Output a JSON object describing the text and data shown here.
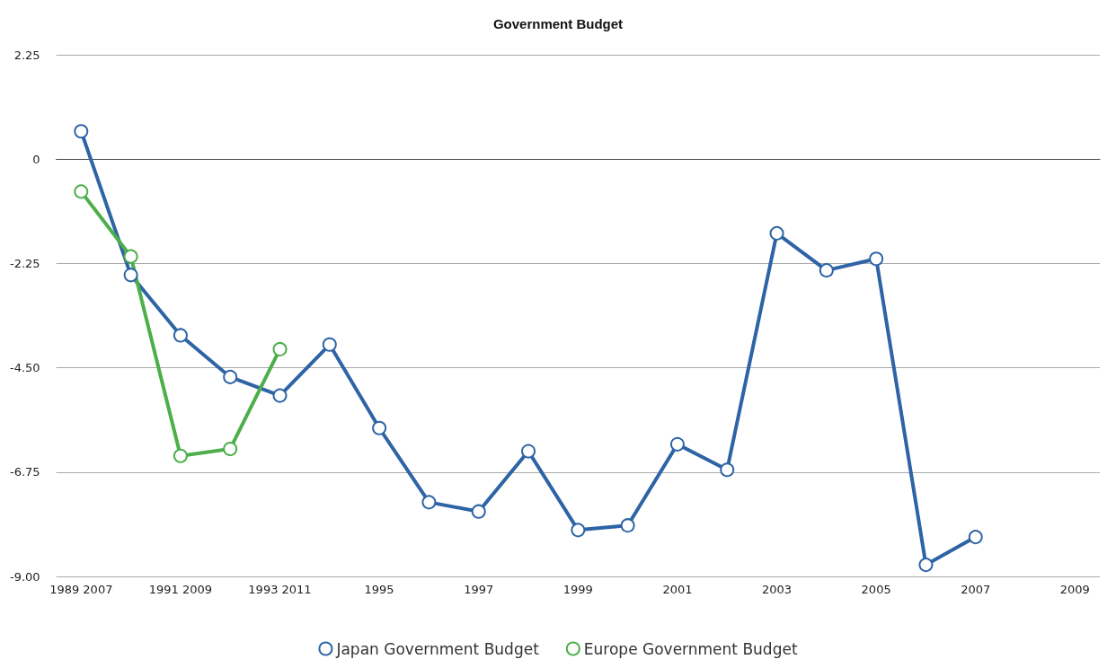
{
  "chart_data": {
    "type": "line",
    "title": "Government Budget",
    "categories": [
      "1989 2007",
      null,
      "1991 2009",
      null,
      "1993 2011",
      null,
      "1995",
      null,
      "1997",
      null,
      "1999",
      null,
      "2001",
      null,
      "2003",
      null,
      "2005",
      null,
      "2007",
      null,
      "2009"
    ],
    "series": [
      {
        "name": "Japan Government Budget",
        "color": "#2e64a6",
        "values": [
          0.6,
          -2.5,
          -3.8,
          -4.7,
          -5.1,
          -4.0,
          -5.8,
          -7.4,
          -7.6,
          -6.3,
          -8.0,
          -7.9,
          -6.15,
          -6.7,
          -1.6,
          -2.4,
          -2.15,
          -8.75,
          -8.15,
          null,
          null
        ]
      },
      {
        "name": "Europe Government Budget",
        "color": "#4caf4a",
        "values": [
          -0.7,
          -2.1,
          -6.4,
          -6.25,
          -4.1,
          null,
          null,
          null,
          null,
          null,
          null,
          null,
          null,
          null,
          null,
          null,
          null,
          null,
          null,
          null,
          null
        ]
      }
    ],
    "ylim": [
      -9,
      2.25
    ],
    "yticks": [
      {
        "value": -9,
        "label": "-9.00"
      },
      {
        "value": -6.75,
        "label": "-6.75"
      },
      {
        "value": -4.5,
        "label": "-4.50"
      },
      -2.25,
      0,
      2.25
    ],
    "grid": "y",
    "legend": "bottom",
    "marker": "circle",
    "line_style": "solid"
  }
}
